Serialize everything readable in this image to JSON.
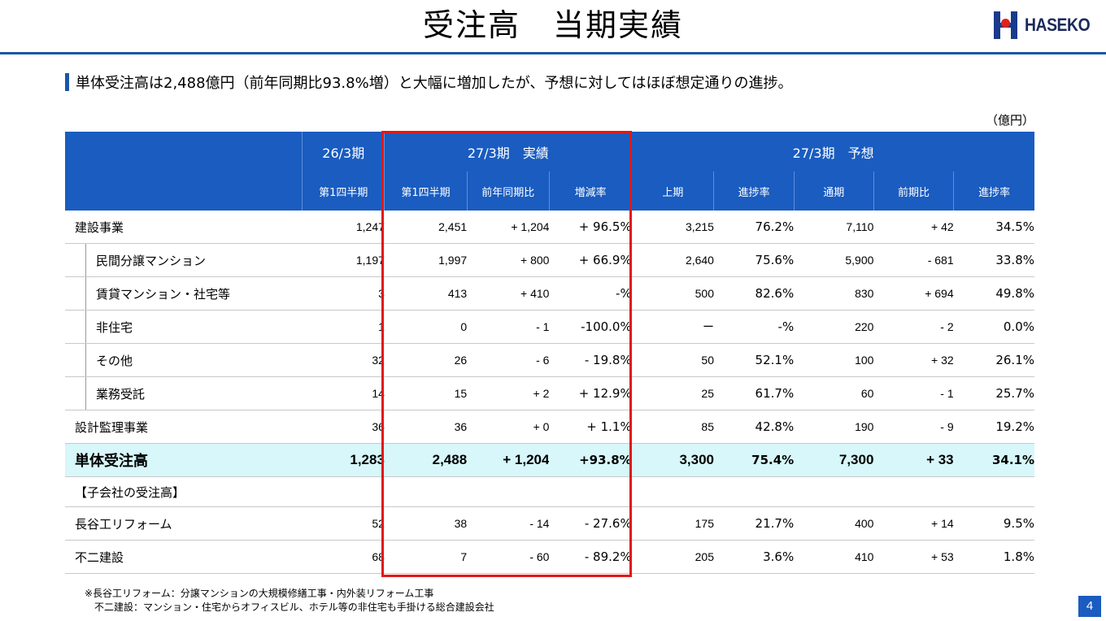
{
  "page": {
    "title": "受注高　当期実績",
    "headline": "単体受注高は2,488億円（前年同期比93.8%増）と大幅に増加したが、予想に対してはほぼ想定通りの進捗。",
    "unit": "（億円）",
    "page_number": "4",
    "logo_text": "HASEKO",
    "accent_color": "#1a5cc0",
    "highlight_color": "#e01818",
    "total_row_color": "#d7f7fa"
  },
  "table": {
    "group_headers": [
      "26/3期",
      "27/3期　実績",
      "27/3期　予想"
    ],
    "sub_headers": [
      "第1四半期",
      "第1四半期",
      "前年同期比",
      "増減率",
      "上期",
      "進捗率",
      "通期",
      "前期比",
      "進捗率"
    ],
    "rows": [
      {
        "label": "建設事業",
        "cells": [
          "1,247",
          "2,451",
          "+ 1,204",
          "+ 96.5%",
          "3,215",
          "76.2%",
          "7,110",
          "+ 42",
          "34.5%"
        ]
      },
      {
        "label": "民間分譲マンション",
        "cells": [
          "1,197",
          "1,997",
          "+ 800",
          "+ 66.9%",
          "2,640",
          "75.6%",
          "5,900",
          "- 681",
          "33.8%"
        ]
      },
      {
        "label": "賃貸マンション・社宅等",
        "cells": [
          "3",
          "413",
          "+ 410",
          "-%",
          "500",
          "82.6%",
          "830",
          "+ 694",
          "49.8%"
        ]
      },
      {
        "label": "非住宅",
        "cells": [
          "1",
          "0",
          "- 1",
          "-100.0%",
          "ー",
          "-%",
          "220",
          "-  2",
          "0.0%"
        ]
      },
      {
        "label": "その他",
        "cells": [
          "32",
          "26",
          "- 6",
          "- 19.8%",
          "50",
          "52.1%",
          "100",
          "+ 32",
          "26.1%"
        ]
      },
      {
        "label": "業務受託",
        "cells": [
          "14",
          "15",
          "+ 2",
          "+ 12.9%",
          "25",
          "61.7%",
          "60",
          "- 1",
          "25.7%"
        ]
      },
      {
        "label": "設計監理事業",
        "cells": [
          "36",
          "36",
          "+ 0",
          "+ 1.1%",
          "85",
          "42.8%",
          "190",
          "- 9",
          "19.2%"
        ]
      },
      {
        "label": "単体受注高",
        "cells": [
          "1,283",
          "2,488",
          "+ 1,204",
          "+93.8%",
          "3,300",
          "75.4%",
          "7,300",
          "+ 33",
          "34.1%"
        ]
      },
      {
        "label": "【子会社の受注高】",
        "cells": []
      },
      {
        "label": "長谷工リフォーム",
        "cells": [
          "52",
          "38",
          "- 14",
          "- 27.6%",
          "175",
          "21.7%",
          "400",
          "+ 14",
          "9.5%"
        ]
      },
      {
        "label": "不二建設",
        "cells": [
          "68",
          "7",
          "- 60",
          "- 89.2%",
          "205",
          "3.6%",
          "410",
          "+ 53",
          "1.8%"
        ]
      }
    ]
  },
  "notes": [
    "※長谷工リフォーム：分譲マンションの大規模修繕工事・内外装リフォーム工事",
    "　不二建設：マンション・住宅からオフィスビル、ホテル等の非住宅も手掛ける総合建設会社"
  ]
}
